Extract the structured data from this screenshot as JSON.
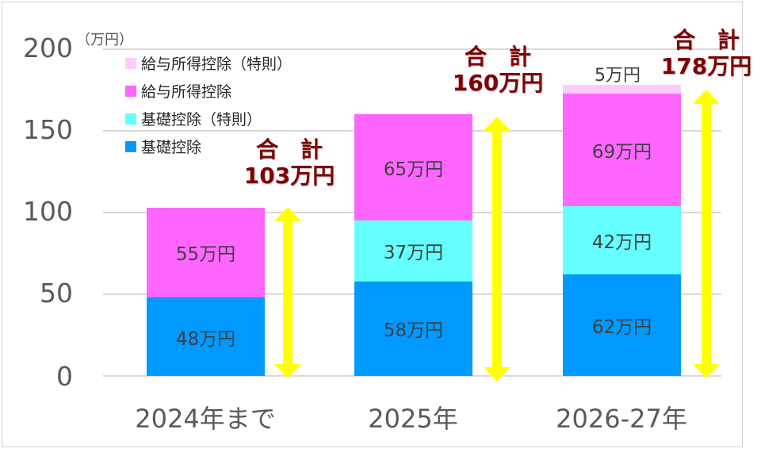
{
  "chart_data": {
    "type": "bar",
    "stacked": true,
    "title": "",
    "unit_label": "（万円）",
    "xlabel": "",
    "ylabel": "万円",
    "ylim": [
      0,
      200
    ],
    "yticks": [
      0,
      50,
      100,
      150,
      200
    ],
    "categories": [
      "2024年まで",
      "2025年",
      "2026-27年"
    ],
    "series": [
      {
        "name": "基礎控除",
        "color": "#0099ff",
        "values": [
          48,
          58,
          62
        ],
        "labels": [
          "48万円",
          "58万円",
          "62万円"
        ]
      },
      {
        "name": "基礎控除（特則）",
        "color": "#66ffff",
        "values": [
          0,
          37,
          42
        ],
        "labels": [
          "",
          "37万円",
          "42万円"
        ]
      },
      {
        "name": "給与所得控除",
        "color": "#ff66ff",
        "values": [
          55,
          65,
          69
        ],
        "labels": [
          "55万円",
          "65万円",
          "69万円"
        ]
      },
      {
        "name": "給与所得控除（特則）",
        "color": "#ffccff",
        "values": [
          0,
          0,
          5
        ],
        "labels": [
          "",
          "",
          "5万円"
        ]
      }
    ],
    "totals": [
      {
        "heading": "合　計",
        "value": "103万円"
      },
      {
        "heading": "合　計",
        "value": "160万円"
      },
      {
        "heading": "合　計",
        "value": "178万円"
      }
    ],
    "legend_order": [
      "給与所得控除（特則）",
      "給与所得控除",
      "基礎控除（特則）",
      "基礎控除"
    ],
    "legend_position": "upper-left",
    "grid": true,
    "arrow_color": "#ffff00",
    "total_color": "#7f0000"
  }
}
